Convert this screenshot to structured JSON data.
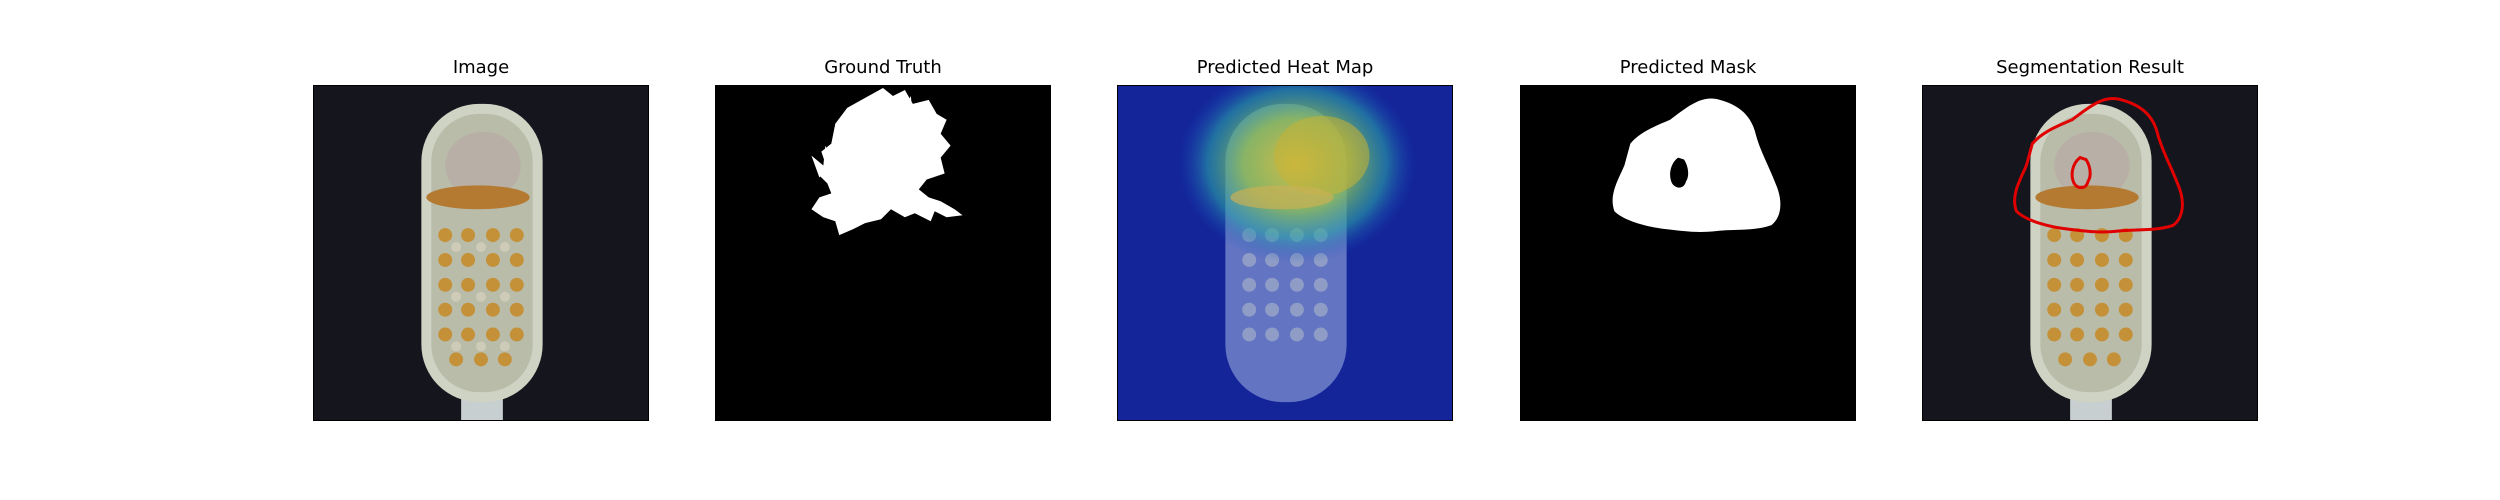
{
  "figure": {
    "panels": [
      {
        "title": "Image",
        "content": "toothbrush-photo"
      },
      {
        "title": "Ground Truth",
        "content": "ground-truth-mask"
      },
      {
        "title": "Predicted Heat Map",
        "content": "heat-map-overlay"
      },
      {
        "title": "Predicted Mask",
        "content": "predicted-mask"
      },
      {
        "title": "Segmentation Result",
        "content": "contour-overlay"
      }
    ],
    "colors": {
      "background": "#ffffff",
      "photo_background": "#15151d",
      "mask_foreground": "#ffffff",
      "mask_background": "#000000",
      "heat_cold": "#0c1a8a",
      "heat_hot": "#c7b234",
      "contour": "#e00000"
    }
  }
}
